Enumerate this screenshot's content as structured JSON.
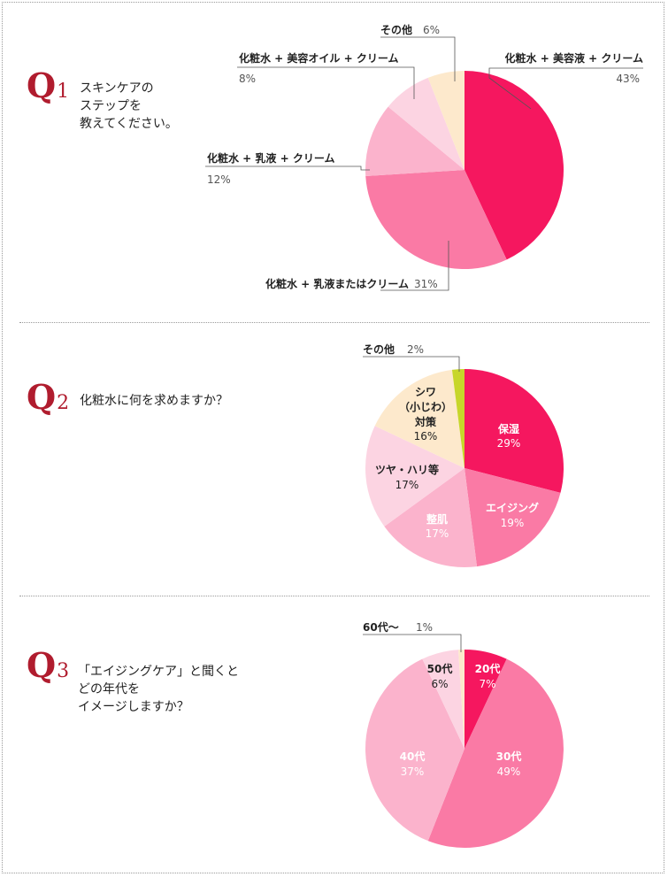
{
  "colors": {
    "accent": "#b01c2e",
    "hot_pink": "#f5175f",
    "pink": "#fa7aa5",
    "light_pink": "#fbb3cc",
    "pale_pink": "#fcd4e2",
    "cream": "#fde9cc",
    "lime": "#c7d62a"
  },
  "questions": [
    {
      "id": "Q1",
      "q_letter": "Q",
      "q_num": "1",
      "text_lines": [
        "スキンケアの",
        "ステップを",
        "教えてください。"
      ]
    },
    {
      "id": "Q2",
      "q_letter": "Q",
      "q_num": "2",
      "text_lines": [
        "化粧水に何を求めますか？"
      ]
    },
    {
      "id": "Q3",
      "q_letter": "Q",
      "q_num": "3",
      "text_lines": [
        "「エイジングケア」と聞くと",
        "どの年代を",
        "イメージしますか？"
      ]
    }
  ],
  "chart_data": [
    {
      "type": "pie",
      "question": "Q1",
      "slices": [
        {
          "name": "化粧水 + 美容液 + クリーム",
          "value": 43,
          "value_label": "43%",
          "color": "#f5175f"
        },
        {
          "name": "化粧水 + 乳液またはクリーム",
          "value": 31,
          "value_label": "31%",
          "color": "#fa7aa5"
        },
        {
          "name": "化粧水 + 乳液 + クリーム",
          "value": 12,
          "value_label": "12%",
          "color": "#fbb3cc"
        },
        {
          "name": "化粧水 + 美容オイル + クリーム",
          "value": 8,
          "value_label": "8%",
          "color": "#fcd4e2"
        },
        {
          "name": "その他",
          "value": 6,
          "value_label": "6%",
          "color": "#fde9cc"
        }
      ]
    },
    {
      "type": "pie",
      "question": "Q2",
      "slices": [
        {
          "name": "保湿",
          "value": 29,
          "value_label": "29%",
          "color": "#f5175f"
        },
        {
          "name": "エイジング",
          "value": 19,
          "value_label": "19%",
          "color": "#fa7aa5"
        },
        {
          "name": "整肌",
          "value": 17,
          "value_label": "17%",
          "color": "#fbb3cc"
        },
        {
          "name": "ツヤ・ハリ等",
          "value": 17,
          "value_label": "17%",
          "color": "#fcd4e2"
        },
        {
          "name": "シワ（小じわ）対策",
          "name_lines": [
            "シワ",
            "（小じわ）",
            "対策"
          ],
          "value": 16,
          "value_label": "16%",
          "color": "#fde9cc"
        },
        {
          "name": "その他",
          "value": 2,
          "value_label": "2%",
          "color": "#c7d62a"
        }
      ]
    },
    {
      "type": "pie",
      "question": "Q3",
      "slices": [
        {
          "name": "20代",
          "value": 7,
          "value_label": "7%",
          "color": "#f5175f"
        },
        {
          "name": "30代",
          "value": 49,
          "value_label": "49%",
          "color": "#fa7aa5"
        },
        {
          "name": "40代",
          "value": 37,
          "value_label": "37%",
          "color": "#fbb3cc"
        },
        {
          "name": "50代",
          "value": 6,
          "value_label": "6%",
          "color": "#fcd4e2"
        },
        {
          "name": "60代〜",
          "value": 1,
          "value_label": "1%",
          "color": "#fde9cc"
        }
      ]
    }
  ]
}
